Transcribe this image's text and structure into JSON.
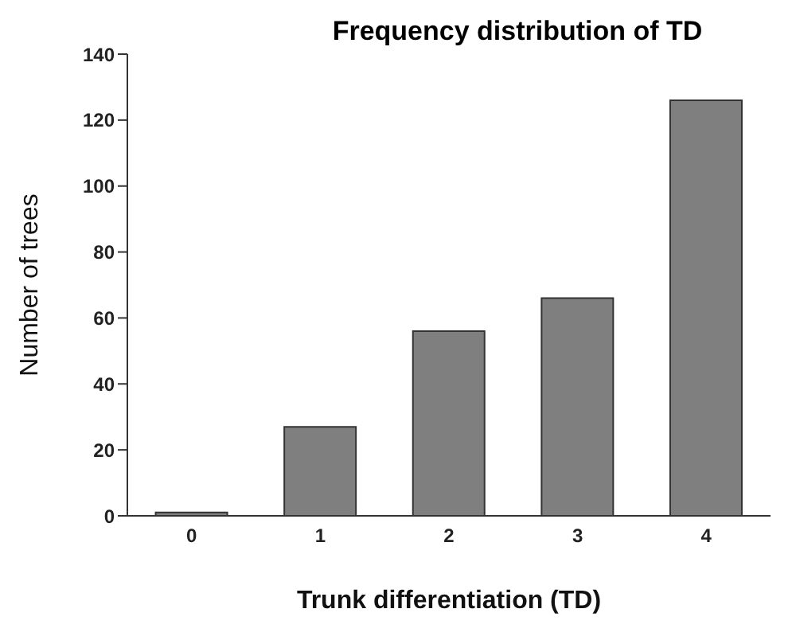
{
  "chart_data": {
    "type": "bar",
    "title": "Frequency distribution of TD",
    "xlabel": "Trunk differentiation  (TD)",
    "ylabel": "Number of trees",
    "categories": [
      "0",
      "1",
      "2",
      "3",
      "4"
    ],
    "values": [
      1,
      27,
      56,
      66,
      126
    ],
    "color": "#7f7f7f",
    "ylim": [
      0,
      140
    ],
    "yticks": [
      0,
      20,
      40,
      60,
      80,
      100,
      120,
      140
    ],
    "grid": false
  }
}
